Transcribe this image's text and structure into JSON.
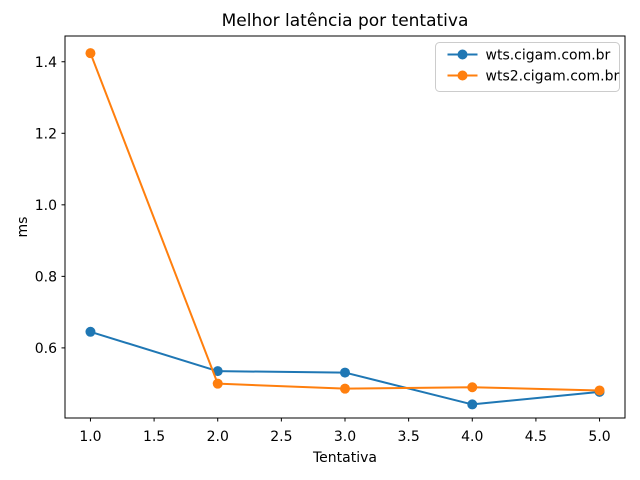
{
  "chart_data": {
    "type": "line",
    "title": "Melhor latência por tentativa",
    "xlabel": "Tentativa",
    "ylabel": "ms",
    "x": [
      1,
      2,
      3,
      4,
      5
    ],
    "series": [
      {
        "name": "wts.cigam.com.br",
        "color": "#1f77b4",
        "values": [
          0.645,
          0.535,
          0.531,
          0.442,
          0.477
        ]
      },
      {
        "name": "wts2.cigam.com.br",
        "color": "#ff7f0e",
        "values": [
          1.424,
          0.5,
          0.486,
          0.49,
          0.481
        ]
      }
    ],
    "xlim": [
      0.8,
      5.2
    ],
    "ylim": [
      0.404,
      1.472
    ],
    "xticks": [
      1.0,
      1.5,
      2.0,
      2.5,
      3.0,
      3.5,
      4.0,
      4.5,
      5.0
    ],
    "xtick_labels": [
      "1.0",
      "1.5",
      "2.0",
      "2.5",
      "3.0",
      "3.5",
      "4.0",
      "4.5",
      "5.0"
    ],
    "yticks": [
      0.6,
      0.8,
      1.0,
      1.2,
      1.4
    ],
    "ytick_labels": [
      "0.6",
      "0.8",
      "1.0",
      "1.2",
      "1.4"
    ],
    "grid": false,
    "marker": "o",
    "legend_position": "upper right",
    "colors": {
      "axes": "#000000",
      "legend_border": "#cccccc",
      "background": "#ffffff"
    }
  }
}
